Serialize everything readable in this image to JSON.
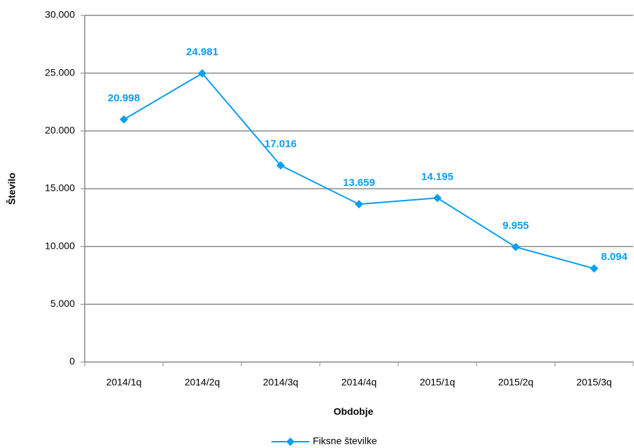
{
  "chart_data": {
    "type": "line",
    "x_label": "Obdobje",
    "y_label": "Število",
    "categories": [
      "2014/1q",
      "2014/2q",
      "2014/3q",
      "2014/4q",
      "2015/1q",
      "2015/2q",
      "2015/3q"
    ],
    "series": [
      {
        "name": "Fiksne številke",
        "color": "#0a9ef0",
        "values": [
          20998,
          24981,
          17016,
          13659,
          14195,
          9955,
          8094
        ],
        "value_labels": [
          "20.998",
          "24.981",
          "17.016",
          "13.659",
          "14.195",
          "9.955",
          "8.094"
        ]
      }
    ],
    "ylim": [
      0,
      30000
    ],
    "yticks": [
      0,
      {
        "value": 5000,
        "label": "5.000"
      },
      {
        "value": 10000,
        "label": "10.000"
      },
      {
        "value": 15000,
        "label": "15.000"
      },
      {
        "value": 20000,
        "label": "20.000"
      },
      {
        "value": 25000,
        "label": "25.000"
      },
      {
        "value": 30000,
        "label": "30.000"
      }
    ],
    "grid": true,
    "legend": "bottom"
  }
}
